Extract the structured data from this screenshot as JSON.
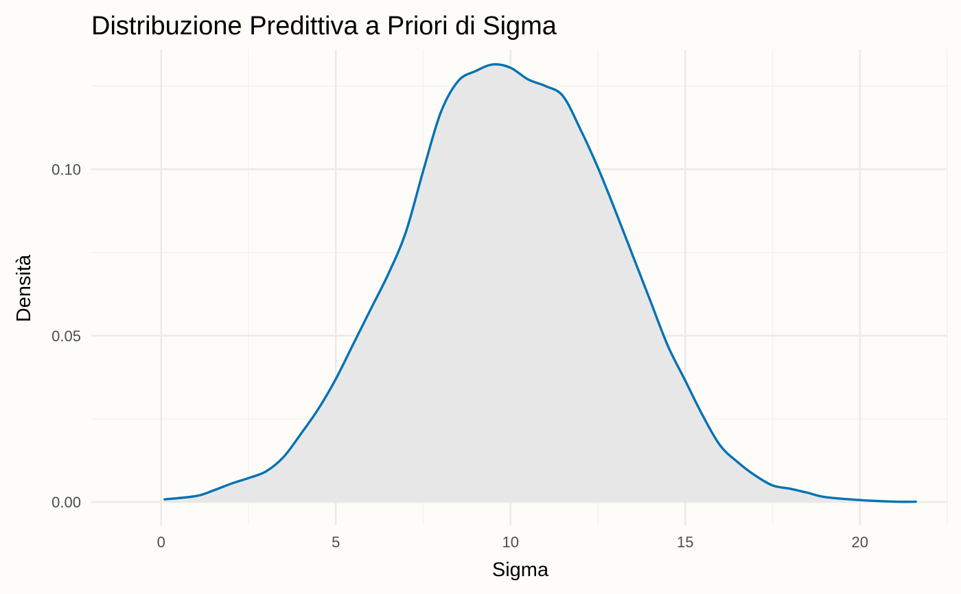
{
  "chart_data": {
    "type": "area",
    "title": "Distribuzione Predittiva a Priori di Sigma",
    "xlabel": "Sigma",
    "ylabel": "Densità",
    "xlim": [
      -2,
      22.5
    ],
    "ylim": [
      -0.007,
      0.136
    ],
    "x_ticks": [
      0,
      5,
      10,
      15,
      20
    ],
    "x_tick_labels": [
      "0",
      "5",
      "10",
      "15",
      "20"
    ],
    "x_minor_ticks": [
      2.5,
      7.5,
      12.5,
      17.5,
      22.5
    ],
    "y_ticks": [
      0,
      0.05,
      0.1
    ],
    "y_tick_labels": [
      "0.00",
      "0.05",
      "0.10"
    ],
    "y_minor_ticks": [
      0.025,
      0.075,
      0.125
    ],
    "grid": true,
    "legend": "none",
    "colors": {
      "line": "#0072b2",
      "fill": "#e7e7e7",
      "background": "#fdfcf9"
    },
    "series": [
      {
        "x": [
          0.1,
          1.0,
          1.5,
          2.0,
          2.5,
          3.0,
          3.5,
          4.0,
          4.5,
          5.0,
          5.5,
          6.0,
          6.5,
          7.0,
          7.5,
          8.0,
          8.5,
          9.0,
          9.5,
          10.0,
          10.5,
          11.0,
          11.5,
          12.0,
          12.5,
          13.0,
          13.5,
          14.0,
          14.5,
          15.0,
          15.5,
          16.0,
          16.5,
          17.0,
          17.5,
          18.0,
          18.5,
          19.0,
          20.0,
          21.0,
          21.6
        ],
        "y": [
          0.0008,
          0.0018,
          0.0035,
          0.0055,
          0.0072,
          0.0092,
          0.0135,
          0.0205,
          0.028,
          0.037,
          0.0475,
          0.058,
          0.0685,
          0.081,
          0.0995,
          0.117,
          0.1265,
          0.1295,
          0.1315,
          0.1305,
          0.127,
          0.125,
          0.122,
          0.112,
          0.1005,
          0.0875,
          0.074,
          0.0605,
          0.047,
          0.0365,
          0.026,
          0.017,
          0.012,
          0.008,
          0.005,
          0.004,
          0.0028,
          0.0015,
          0.0006,
          0.0001,
          0.0001
        ]
      }
    ]
  }
}
